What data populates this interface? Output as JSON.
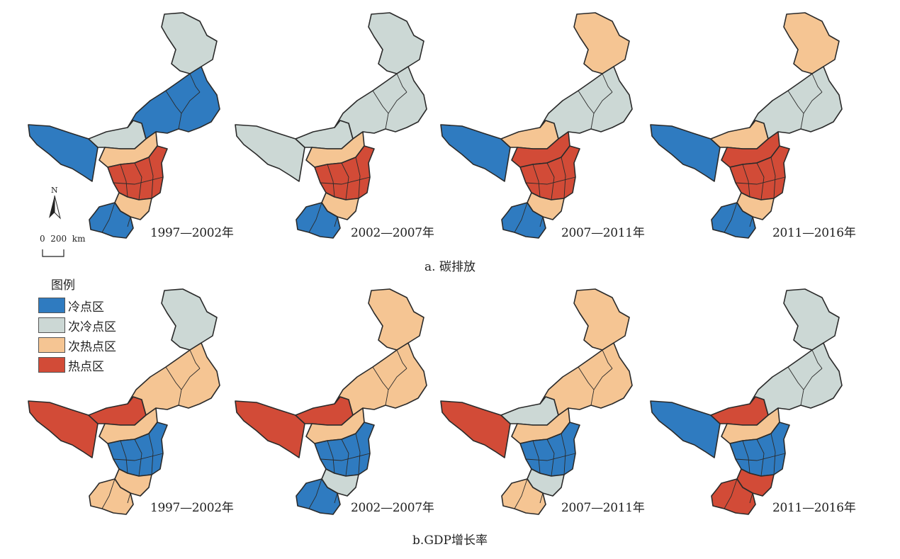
{
  "colors": {
    "cold_spot": "#2f7bc0",
    "sub_cold_spot": "#ccd8d5",
    "sub_hot_spot": "#f5c593",
    "hot_spot": "#d24b37"
  },
  "legend": {
    "title": "图例",
    "items": [
      {
        "label": "冷点区",
        "color": "#2f7bc0"
      },
      {
        "label": "次冷点区",
        "color": "#ccd8d5"
      },
      {
        "label": "次热点区",
        "color": "#f5c593"
      },
      {
        "label": "热点区",
        "color": "#d24b37"
      }
    ]
  },
  "map_furniture": {
    "north_label": "N",
    "scale_label": "0  200  km"
  },
  "rows": [
    {
      "caption": "a. 碳排放",
      "panels": [
        {
          "period": "1997—2002年",
          "regions": {
            "west": "cold",
            "northeast": "sub_cold",
            "middle_east": "cold",
            "center_north": "sub_cold",
            "center_west": "sub_hot",
            "core": "hot",
            "lower": "sub_hot",
            "south": "cold"
          }
        },
        {
          "period": "2002—2007年",
          "regions": {
            "west": "sub_cold",
            "northeast": "sub_cold",
            "middle_east": "sub_cold",
            "center_north": "sub_cold",
            "center_west": "sub_hot",
            "core": "hot",
            "lower": "sub_hot",
            "south": "cold"
          }
        },
        {
          "period": "2007—2011年",
          "regions": {
            "west": "cold",
            "northeast": "sub_hot",
            "middle_east": "sub_cold",
            "center_north": "sub_hot",
            "center_west": "hot",
            "core": "hot",
            "lower": "sub_hot",
            "south": "cold"
          }
        },
        {
          "period": "2011—2016年",
          "regions": {
            "west": "cold",
            "northeast": "sub_hot",
            "middle_east": "sub_cold",
            "center_north": "sub_hot",
            "center_west": "hot",
            "core": "hot",
            "lower": "sub_hot",
            "south": "cold"
          }
        }
      ]
    },
    {
      "caption": "b.GDP增长率",
      "panels": [
        {
          "period": "1997—2002年",
          "regions": {
            "west": "hot",
            "northeast": "sub_cold",
            "middle_east": "sub_hot",
            "center_north": "hot",
            "center_west": "sub_hot",
            "core": "cold",
            "lower": "sub_hot",
            "south": "sub_hot"
          }
        },
        {
          "period": "2002—2007年",
          "regions": {
            "west": "hot",
            "northeast": "sub_hot",
            "middle_east": "sub_hot",
            "center_north": "hot",
            "center_west": "sub_hot",
            "core": "cold",
            "lower": "sub_cold",
            "south": "cold"
          }
        },
        {
          "period": "2007—2011年",
          "regions": {
            "west": "hot",
            "northeast": "sub_hot",
            "middle_east": "sub_hot",
            "center_north": "sub_cold",
            "center_west": "sub_hot",
            "core": "cold",
            "lower": "sub_cold",
            "south": "sub_hot"
          }
        },
        {
          "period": "2011—2016年",
          "regions": {
            "west": "cold",
            "northeast": "sub_cold",
            "middle_east": "sub_cold",
            "center_north": "hot",
            "center_west": "sub_hot",
            "core": "cold",
            "lower": "hot",
            "south": "hot"
          }
        }
      ]
    }
  ]
}
